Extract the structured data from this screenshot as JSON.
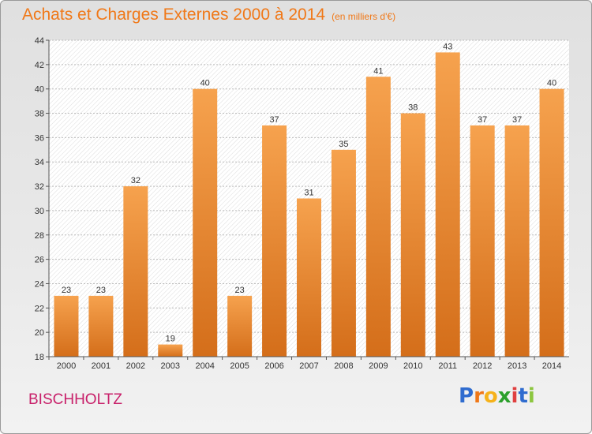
{
  "chart_data": {
    "type": "bar",
    "title": "Achats et Charges Externes 2000 à 2014",
    "subtitle": "(en milliers d'€)",
    "categories": [
      "2000",
      "2001",
      "2002",
      "2003",
      "2004",
      "2005",
      "2006",
      "2007",
      "2008",
      "2009",
      "2010",
      "2011",
      "2012",
      "2013",
      "2014"
    ],
    "values": [
      23,
      23,
      32,
      19,
      40,
      23,
      37,
      31,
      35,
      41,
      38,
      43,
      37,
      37,
      40
    ],
    "ylim": [
      18,
      44
    ],
    "yticks": [
      18,
      20,
      22,
      24,
      26,
      28,
      30,
      32,
      34,
      36,
      38,
      40,
      42,
      44
    ],
    "grid": true,
    "bar_color_top": "#f6a24e",
    "bar_color_bottom": "#d46e1a"
  },
  "location_label": "BISCHHOLTZ",
  "logo": {
    "letters": [
      "P",
      "r",
      "o",
      "x",
      "i",
      "t",
      "i"
    ],
    "colors": [
      "#2f6ccf",
      "#f07818",
      "#f6b21a",
      "#2ca02c",
      "#e04040",
      "#2f6ccf",
      "#8cc63f"
    ]
  }
}
